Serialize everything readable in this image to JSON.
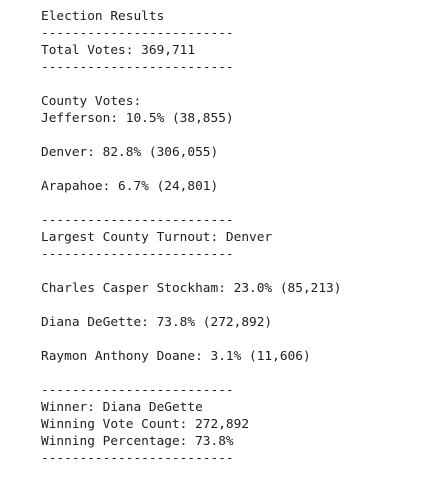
{
  "title": "Election Results",
  "separator": "-------------------------",
  "total_votes": "Total Votes: 369,711",
  "county_header": "County Votes:",
  "counties": [
    "Jefferson: 10.5% (38,855)",
    "Denver: 82.8% (306,055)",
    "Arapahoe: 6.7% (24,801)"
  ],
  "largest_county": "Largest County Turnout: Denver",
  "candidates": [
    "Charles Casper Stockham: 23.0% (85,213)",
    "Diana DeGette: 73.8% (272,892)",
    "Raymon Anthony Doane: 3.1% (11,606)"
  ],
  "winner": {
    "name": "Winner: Diana DeGette",
    "vote_count": "Winning Vote Count: 272,892",
    "percentage": "Winning Percentage: 73.8%"
  }
}
